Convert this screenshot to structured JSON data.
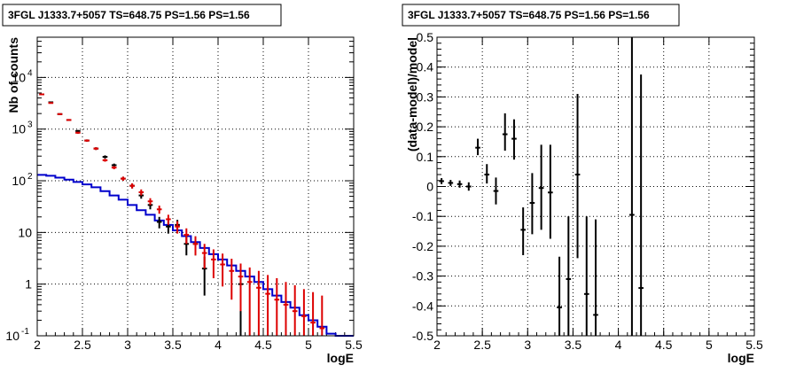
{
  "chart_data": [
    {
      "type": "scatter",
      "title": "3FGL J1333.7+5057 TS=648.75 PS=1.56 PS=1.56",
      "xlabel": "logE",
      "ylabel": "Nb of counts",
      "yscale": "log",
      "xlim": [
        2,
        5.5
      ],
      "ylim": [
        0.1,
        60000
      ],
      "grid": true,
      "xticks": [
        "2",
        "2.5",
        "3",
        "3.5",
        "4",
        "4.5",
        "5",
        "5.5"
      ],
      "yticks": [
        {
          "value": 0.1,
          "label": "10",
          "exp": "-1"
        },
        {
          "value": 1,
          "label": "1",
          "exp": ""
        },
        {
          "value": 10,
          "label": "10",
          "exp": ""
        },
        {
          "value": 100,
          "label": "10",
          "exp": "2"
        },
        {
          "value": 1000,
          "label": "10",
          "exp": "3"
        },
        {
          "value": 10000,
          "label": "10",
          "exp": "4"
        }
      ],
      "series": [
        {
          "color": "#000000",
          "bin_halfwidth": 0.05,
          "points": [
            {
              "x": 2.05,
              "y": 4700,
              "lo": 4600,
              "hi": 4800
            },
            {
              "x": 2.15,
              "y": 3300,
              "lo": 3200,
              "hi": 3400
            },
            {
              "x": 2.25,
              "y": 1950,
              "lo": 1900,
              "hi": 2000
            },
            {
              "x": 2.35,
              "y": 1500,
              "lo": 1450,
              "hi": 1550
            },
            {
              "x": 2.45,
              "y": 920,
              "lo": 880,
              "hi": 960
            },
            {
              "x": 2.55,
              "y": 600,
              "lo": 570,
              "hi": 630
            },
            {
              "x": 2.65,
              "y": 420,
              "lo": 395,
              "hi": 445
            },
            {
              "x": 2.75,
              "y": 290,
              "lo": 270,
              "hi": 310
            },
            {
              "x": 2.85,
              "y": 200,
              "lo": 185,
              "hi": 215
            },
            {
              "x": 2.95,
              "y": 110,
              "lo": 100,
              "hi": 120
            },
            {
              "x": 3.05,
              "y": 80,
              "lo": 71,
              "hi": 89
            },
            {
              "x": 3.15,
              "y": 52,
              "lo": 45,
              "hi": 59
            },
            {
              "x": 3.25,
              "y": 34,
              "lo": 28,
              "hi": 40
            },
            {
              "x": 3.35,
              "y": 16,
              "lo": 12,
              "hi": 20
            },
            {
              "x": 3.45,
              "y": 13,
              "lo": 9.5,
              "hi": 16.5
            },
            {
              "x": 3.55,
              "y": 14,
              "lo": 10.5,
              "hi": 17.5
            },
            {
              "x": 3.65,
              "y": 6,
              "lo": 3.6,
              "hi": 8.4
            },
            {
              "x": 3.75,
              "y": 6,
              "lo": 3.6,
              "hi": 8.4
            },
            {
              "x": 3.85,
              "y": 2,
              "lo": 0.6,
              "hi": 3.4
            },
            {
              "x": 4.25,
              "y": 1,
              "lo": 0.1,
              "hi": 2.0
            }
          ]
        },
        {
          "color": "#dd0000",
          "bin_halfwidth": 0.05,
          "points": [
            {
              "x": 2.05,
              "y": 4700,
              "lo": 4550,
              "hi": 4850
            },
            {
              "x": 2.15,
              "y": 3200,
              "lo": 3100,
              "hi": 3300
            },
            {
              "x": 2.25,
              "y": 1950,
              "lo": 1880,
              "hi": 2020
            },
            {
              "x": 2.35,
              "y": 1500,
              "lo": 1440,
              "hi": 1560
            },
            {
              "x": 2.45,
              "y": 850,
              "lo": 810,
              "hi": 890
            },
            {
              "x": 2.55,
              "y": 600,
              "lo": 570,
              "hi": 630
            },
            {
              "x": 2.65,
              "y": 420,
              "lo": 395,
              "hi": 445
            },
            {
              "x": 2.75,
              "y": 250,
              "lo": 234,
              "hi": 266
            },
            {
              "x": 2.85,
              "y": 180,
              "lo": 167,
              "hi": 193
            },
            {
              "x": 2.95,
              "y": 110,
              "lo": 100,
              "hi": 120
            },
            {
              "x": 3.05,
              "y": 80,
              "lo": 71,
              "hi": 89
            },
            {
              "x": 3.15,
              "y": 60,
              "lo": 52,
              "hi": 68
            },
            {
              "x": 3.25,
              "y": 40,
              "lo": 34,
              "hi": 46
            },
            {
              "x": 3.35,
              "y": 28,
              "lo": 23,
              "hi": 33
            },
            {
              "x": 3.45,
              "y": 18,
              "lo": 14,
              "hi": 22
            },
            {
              "x": 3.55,
              "y": 13,
              "lo": 9.5,
              "hi": 16.5
            },
            {
              "x": 3.65,
              "y": 9,
              "lo": 6,
              "hi": 12
            },
            {
              "x": 3.75,
              "y": 6,
              "lo": 3.6,
              "hi": 8.4
            },
            {
              "x": 3.85,
              "y": 4,
              "lo": 2.0,
              "hi": 6.0
            },
            {
              "x": 3.95,
              "y": 3,
              "lo": 1.3,
              "hi": 4.7
            },
            {
              "x": 4.05,
              "y": 2.4,
              "lo": 0.9,
              "hi": 3.9
            },
            {
              "x": 4.15,
              "y": 1.8,
              "lo": 0.5,
              "hi": 3.1
            },
            {
              "x": 4.25,
              "y": 1.4,
              "lo": 0.3,
              "hi": 2.5
            },
            {
              "x": 4.35,
              "y": 1.1,
              "lo": 0.1,
              "hi": 2.1
            },
            {
              "x": 4.45,
              "y": 0.85,
              "lo": 0.1,
              "hi": 1.8
            },
            {
              "x": 4.55,
              "y": 0.65,
              "lo": 0.1,
              "hi": 1.5
            },
            {
              "x": 4.65,
              "y": 0.5,
              "lo": 0.1,
              "hi": 1.3
            },
            {
              "x": 4.75,
              "y": 0.4,
              "lo": 0.1,
              "hi": 1.1
            },
            {
              "x": 4.85,
              "y": 0.3,
              "lo": 0.1,
              "hi": 0.95
            },
            {
              "x": 4.95,
              "y": 0.24,
              "lo": 0.1,
              "hi": 0.8
            },
            {
              "x": 5.05,
              "y": 0.18,
              "lo": 0.1,
              "hi": 0.7
            },
            {
              "x": 5.15,
              "y": 0.14,
              "lo": 0.1,
              "hi": 0.6
            }
          ]
        }
      ],
      "model": {
        "color": "#0000cc",
        "edges": [
          2.0,
          2.1,
          2.2,
          2.3,
          2.4,
          2.5,
          2.6,
          2.7,
          2.8,
          2.9,
          3.0,
          3.1,
          3.2,
          3.3,
          3.4,
          3.5,
          3.6,
          3.7,
          3.8,
          3.9,
          4.0,
          4.1,
          4.2,
          4.3,
          4.4,
          4.5,
          4.6,
          4.7,
          4.8,
          4.9,
          5.0,
          5.1,
          5.2,
          5.3,
          5.4,
          5.5
        ],
        "values": [
          130,
          125,
          115,
          105,
          95,
          85,
          75,
          63,
          52,
          43,
          34,
          27,
          22,
          17,
          14,
          11,
          8.5,
          6.5,
          5,
          3.8,
          3,
          2.3,
          1.8,
          1.4,
          1.1,
          0.8,
          0.6,
          0.45,
          0.35,
          0.25,
          0.2,
          0.15,
          0.11,
          0.1,
          0.1
        ]
      }
    },
    {
      "type": "scatter",
      "title": "3FGL J1333.7+5057 TS=648.75 PS=1.56 PS=1.56",
      "xlabel": "logE",
      "ylabel": "(data-model)/model",
      "xlim": [
        2,
        5.5
      ],
      "ylim": [
        -0.5,
        0.5
      ],
      "grid": true,
      "xticks": [
        "2",
        "2.5",
        "3",
        "3.5",
        "4",
        "4.5",
        "5",
        "5.5"
      ],
      "yticks": [
        "-0.5",
        "-0.4",
        "-0.3",
        "-0.2",
        "-0.1",
        "0",
        "0.1",
        "0.2",
        "0.3",
        "0.4",
        "0.5"
      ],
      "series": [
        {
          "color": "#000000",
          "bin_halfwidth": 0.05,
          "points": [
            {
              "x": 2.05,
              "y": 0.018,
              "lo": 0.008,
              "hi": 0.028
            },
            {
              "x": 2.15,
              "y": 0.012,
              "lo": 0.002,
              "hi": 0.022
            },
            {
              "x": 2.25,
              "y": 0.008,
              "lo": -0.004,
              "hi": 0.02
            },
            {
              "x": 2.35,
              "y": 0.0,
              "lo": -0.014,
              "hi": 0.014
            },
            {
              "x": 2.45,
              "y": 0.13,
              "lo": 0.105,
              "hi": 0.16
            },
            {
              "x": 2.55,
              "y": 0.04,
              "lo": 0.01,
              "hi": 0.075
            },
            {
              "x": 2.65,
              "y": -0.015,
              "lo": -0.06,
              "hi": 0.03
            },
            {
              "x": 2.75,
              "y": 0.175,
              "lo": 0.12,
              "hi": 0.245
            },
            {
              "x": 2.85,
              "y": 0.16,
              "lo": 0.09,
              "hi": 0.225
            },
            {
              "x": 2.95,
              "y": -0.145,
              "lo": -0.23,
              "hi": -0.07
            },
            {
              "x": 3.05,
              "y": -0.055,
              "lo": -0.16,
              "hi": 0.045
            },
            {
              "x": 3.15,
              "y": -0.005,
              "lo": -0.145,
              "hi": 0.14
            },
            {
              "x": 3.25,
              "y": -0.02,
              "lo": -0.175,
              "hi": 0.14
            },
            {
              "x": 3.35,
              "y": -0.405,
              "lo": -0.5,
              "hi": -0.235
            },
            {
              "x": 3.45,
              "y": -0.31,
              "lo": -0.5,
              "hi": -0.1
            },
            {
              "x": 3.55,
              "y": 0.04,
              "lo": -0.24,
              "hi": 0.31
            },
            {
              "x": 3.65,
              "y": -0.36,
              "lo": -0.5,
              "hi": -0.1
            },
            {
              "x": 3.75,
              "y": -0.43,
              "lo": -0.5,
              "hi": -0.11
            },
            {
              "x": 4.15,
              "y": -0.095,
              "lo": -0.5,
              "hi": 0.5
            },
            {
              "x": 4.25,
              "y": -0.34,
              "lo": -0.5,
              "hi": 0.375
            }
          ]
        }
      ]
    }
  ]
}
